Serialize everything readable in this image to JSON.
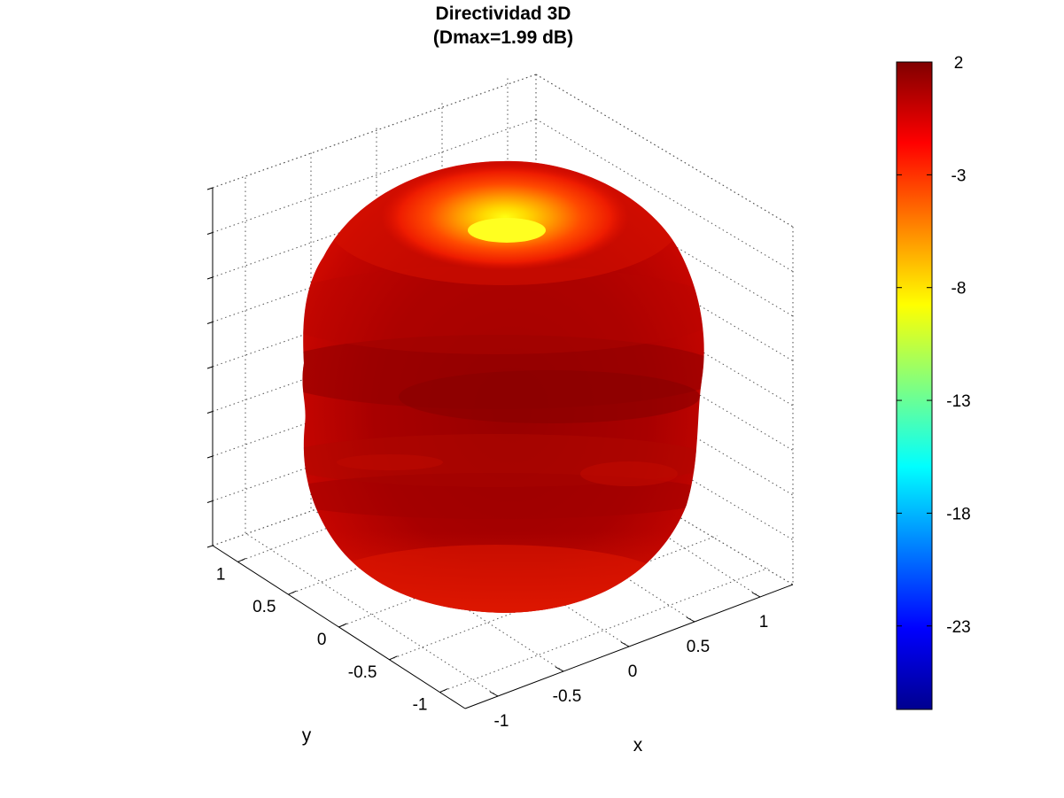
{
  "title": {
    "line1": "Directividad 3D",
    "line2": "(Dmax=1.99 dB)"
  },
  "chart_data": {
    "type": "surface-3d",
    "title": "Directividad 3D",
    "subtitle": "(Dmax=1.99 dB)",
    "dmax_db": 1.99,
    "xlabel": "x",
    "ylabel": "y",
    "x_ticks": [
      "-1",
      "-0.5",
      "0",
      "0.5",
      "1"
    ],
    "y_ticks": [
      "-1",
      "-0.5",
      "0",
      "0.5",
      "1"
    ],
    "xlim": [
      -1.25,
      1.25
    ],
    "ylim": [
      -1.25,
      1.25
    ],
    "grid": true,
    "colormap": "jet",
    "colorbar": {
      "ticks": [
        "2",
        "-3",
        "-8",
        "-13",
        "-18",
        "-23"
      ],
      "values": [
        2,
        -3,
        -8,
        -13,
        -18,
        -23
      ],
      "range": [
        -26.7,
        2
      ]
    },
    "surface": {
      "shape": "near-spherical pattern with a shallow dip at the top pole",
      "top_pole_db": -8,
      "body_db": 1.5
    }
  }
}
